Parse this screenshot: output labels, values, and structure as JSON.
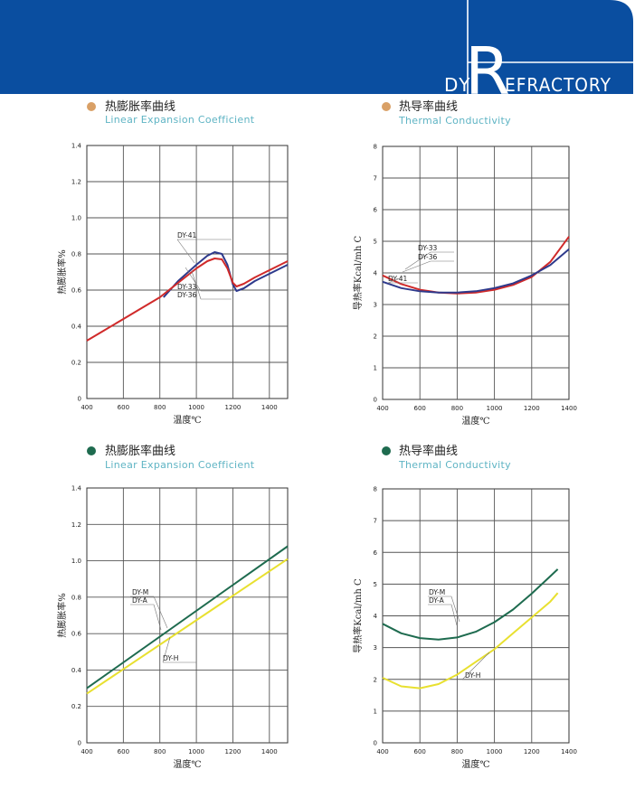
{
  "header": {
    "brand_prefix": "DY",
    "brand_big_letter": "R",
    "brand_suffix": "EFRACTORY",
    "bg_color": "#0a4ea0"
  },
  "charts": [
    {
      "bullet_color": "#d9a066",
      "title_cn": "热膨胀率曲线",
      "title_en": "Linear Expansion Coefficient",
      "xlabel": "温度℃",
      "ylabel": "热膨胀率%",
      "xticks": [
        "400",
        "600",
        "800",
        "1000",
        "1200",
        "1400"
      ],
      "yticks": [
        "0",
        "0.2",
        "0.4",
        "0.6",
        "0.8",
        "1.0",
        "1.2",
        "1.4"
      ],
      "callouts": [
        {
          "label": "DY-41"
        },
        {
          "label": "DY-33"
        },
        {
          "label": "DY-36"
        }
      ]
    },
    {
      "bullet_color": "#d9a066",
      "title_cn": "热导率曲线",
      "title_en": "Thermal Conductivity",
      "xlabel": "温度℃",
      "ylabel": "导热率Kcal/mh C",
      "xticks": [
        "400",
        "600",
        "800",
        "1000",
        "1200",
        "1400"
      ],
      "yticks": [
        "0",
        "1",
        "2",
        "3",
        "4",
        "5",
        "6",
        "7",
        "8"
      ],
      "callouts": [
        {
          "label": "DY-33"
        },
        {
          "label": "DY-36"
        },
        {
          "label": "DY-41"
        }
      ]
    },
    {
      "bullet_color": "#1e6b4f",
      "title_cn": "热膨胀率曲线",
      "title_en": "Linear Expansion Coefficient",
      "xlabel": "温度℃",
      "ylabel": "热膨胀率%",
      "xticks": [
        "400",
        "600",
        "800",
        "1000",
        "1200",
        "1400"
      ],
      "yticks": [
        "0",
        "0.2",
        "0.4",
        "0.6",
        "0.8",
        "1.0",
        "1.2",
        "1.4"
      ],
      "callouts": [
        {
          "label": "DY-M"
        },
        {
          "label": "DY-A"
        },
        {
          "label": "DY-H"
        }
      ]
    },
    {
      "bullet_color": "#1e6b4f",
      "title_cn": "热导率曲线",
      "title_en": "Thermal Conductivity",
      "xlabel": "温度℃",
      "ylabel": "导热率Kcal/mh C",
      "xticks": [
        "400",
        "600",
        "800",
        "1000",
        "1200",
        "1400"
      ],
      "yticks": [
        "0",
        "1",
        "2",
        "3",
        "4",
        "5",
        "6",
        "7",
        "8"
      ],
      "callouts": [
        {
          "label": "DY-M"
        },
        {
          "label": "DY-A"
        },
        {
          "label": "DY-H"
        }
      ]
    }
  ],
  "chart_data": [
    {
      "type": "line",
      "xlim": [
        400,
        1500
      ],
      "ylim": [
        0,
        1.4
      ],
      "grid": true,
      "series": [
        {
          "name": "DY-41",
          "color": "#2e3a8c",
          "points": [
            [
              820,
              0.56
            ],
            [
              900,
              0.65
            ],
            [
              1000,
              0.74
            ],
            [
              1060,
              0.79
            ],
            [
              1100,
              0.81
            ],
            [
              1140,
              0.8
            ],
            [
              1170,
              0.74
            ],
            [
              1200,
              0.63
            ],
            [
              1220,
              0.595
            ],
            [
              1260,
              0.61
            ],
            [
              1320,
              0.65
            ],
            [
              1400,
              0.69
            ],
            [
              1500,
              0.74
            ]
          ]
        },
        {
          "name": "DY-33",
          "color": "#d02a2a",
          "points": [
            [
              400,
              0.32
            ],
            [
              500,
              0.38
            ],
            [
              600,
              0.44
            ],
            [
              700,
              0.5
            ],
            [
              800,
              0.56
            ],
            [
              900,
              0.64
            ],
            [
              1000,
              0.72
            ],
            [
              1060,
              0.76
            ],
            [
              1100,
              0.775
            ],
            [
              1140,
              0.77
            ],
            [
              1170,
              0.72
            ],
            [
              1200,
              0.64
            ],
            [
              1220,
              0.62
            ],
            [
              1260,
              0.635
            ],
            [
              1320,
              0.67
            ],
            [
              1400,
              0.71
            ],
            [
              1500,
              0.76
            ]
          ]
        }
      ]
    },
    {
      "type": "line",
      "xlim": [
        400,
        1400
      ],
      "ylim": [
        0,
        8
      ],
      "grid": true,
      "series": [
        {
          "name": "DY-33",
          "color": "#d02a2a",
          "points": [
            [
              400,
              3.92
            ],
            [
              500,
              3.65
            ],
            [
              600,
              3.47
            ],
            [
              700,
              3.38
            ],
            [
              800,
              3.35
            ],
            [
              900,
              3.38
            ],
            [
              1000,
              3.47
            ],
            [
              1100,
              3.62
            ],
            [
              1200,
              3.87
            ],
            [
              1300,
              4.35
            ],
            [
              1400,
              5.15
            ]
          ]
        },
        {
          "name": "DY-41",
          "color": "#2e3a8c",
          "points": [
            [
              400,
              3.72
            ],
            [
              500,
              3.52
            ],
            [
              600,
              3.42
            ],
            [
              700,
              3.38
            ],
            [
              800,
              3.38
            ],
            [
              900,
              3.42
            ],
            [
              1000,
              3.52
            ],
            [
              1100,
              3.67
            ],
            [
              1200,
              3.92
            ],
            [
              1300,
              4.25
            ],
            [
              1400,
              4.75
            ]
          ]
        }
      ]
    },
    {
      "type": "line",
      "xlim": [
        400,
        1500
      ],
      "ylim": [
        0,
        1.4
      ],
      "grid": true,
      "series": [
        {
          "name": "DY-M",
          "color": "#1e6b4f",
          "points": [
            [
              400,
              0.3
            ],
            [
              1500,
              1.08
            ]
          ]
        },
        {
          "name": "DY-H",
          "color": "#e8e030",
          "points": [
            [
              400,
              0.27
            ],
            [
              1500,
              1.01
            ]
          ]
        }
      ]
    },
    {
      "type": "line",
      "xlim": [
        400,
        1400
      ],
      "ylim": [
        0,
        8
      ],
      "grid": true,
      "series": [
        {
          "name": "DY-M",
          "color": "#1e6b4f",
          "points": [
            [
              400,
              3.75
            ],
            [
              500,
              3.45
            ],
            [
              600,
              3.3
            ],
            [
              700,
              3.25
            ],
            [
              800,
              3.32
            ],
            [
              900,
              3.5
            ],
            [
              1000,
              3.8
            ],
            [
              1100,
              4.2
            ],
            [
              1200,
              4.7
            ],
            [
              1300,
              5.25
            ],
            [
              1340,
              5.47
            ]
          ]
        },
        {
          "name": "DY-H",
          "color": "#e8e030",
          "points": [
            [
              400,
              2.05
            ],
            [
              500,
              1.78
            ],
            [
              600,
              1.72
            ],
            [
              700,
              1.85
            ],
            [
              800,
              2.15
            ],
            [
              900,
              2.55
            ],
            [
              1000,
              2.95
            ],
            [
              1100,
              3.45
            ],
            [
              1200,
              3.95
            ],
            [
              1300,
              4.45
            ],
            [
              1340,
              4.72
            ]
          ]
        }
      ]
    }
  ]
}
